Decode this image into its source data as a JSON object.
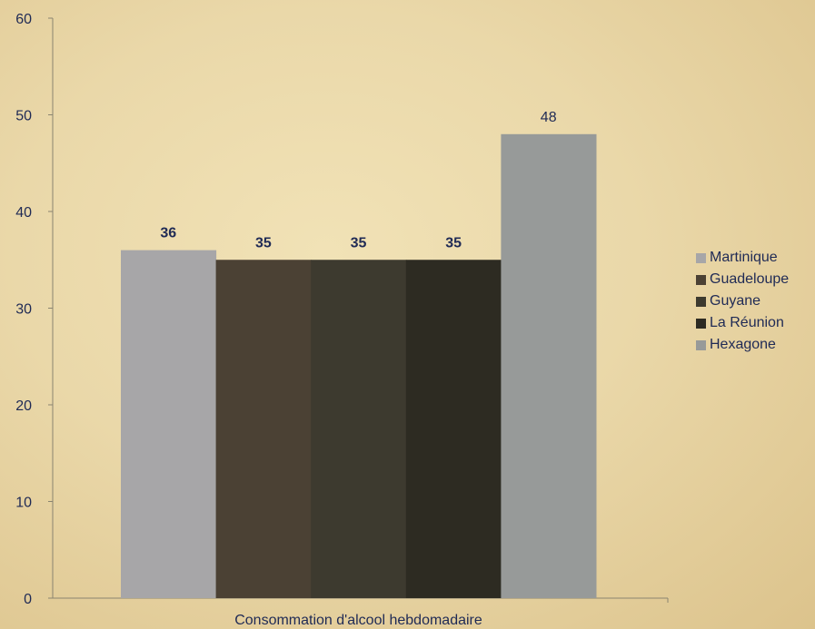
{
  "chart_data": {
    "type": "bar",
    "categories": [
      "Consommation d'alcool hebdomadaire"
    ],
    "xlabel": "Consommation d'alcool hebdomadaire",
    "ylim": [
      0,
      60
    ],
    "yticks": [
      0,
      10,
      20,
      30,
      40,
      50,
      60
    ],
    "grid": false,
    "legend_position": "right",
    "series": [
      {
        "name": "Martinique",
        "values": [
          36
        ],
        "color": "#a7a6a8",
        "label": "36",
        "label_bold": true
      },
      {
        "name": "Guadeloupe",
        "values": [
          35
        ],
        "color": "#4b4134",
        "label": "35",
        "label_bold": true
      },
      {
        "name": "Guyane",
        "values": [
          35
        ],
        "color": "#3d3a2f",
        "label": "35",
        "label_bold": true
      },
      {
        "name": "La Réunion",
        "values": [
          35
        ],
        "color": "#2d2b22",
        "label": "35",
        "label_bold": true
      },
      {
        "name": "Hexagone",
        "values": [
          48
        ],
        "color": "#979a99",
        "label": "48",
        "label_bold": false
      }
    ]
  }
}
